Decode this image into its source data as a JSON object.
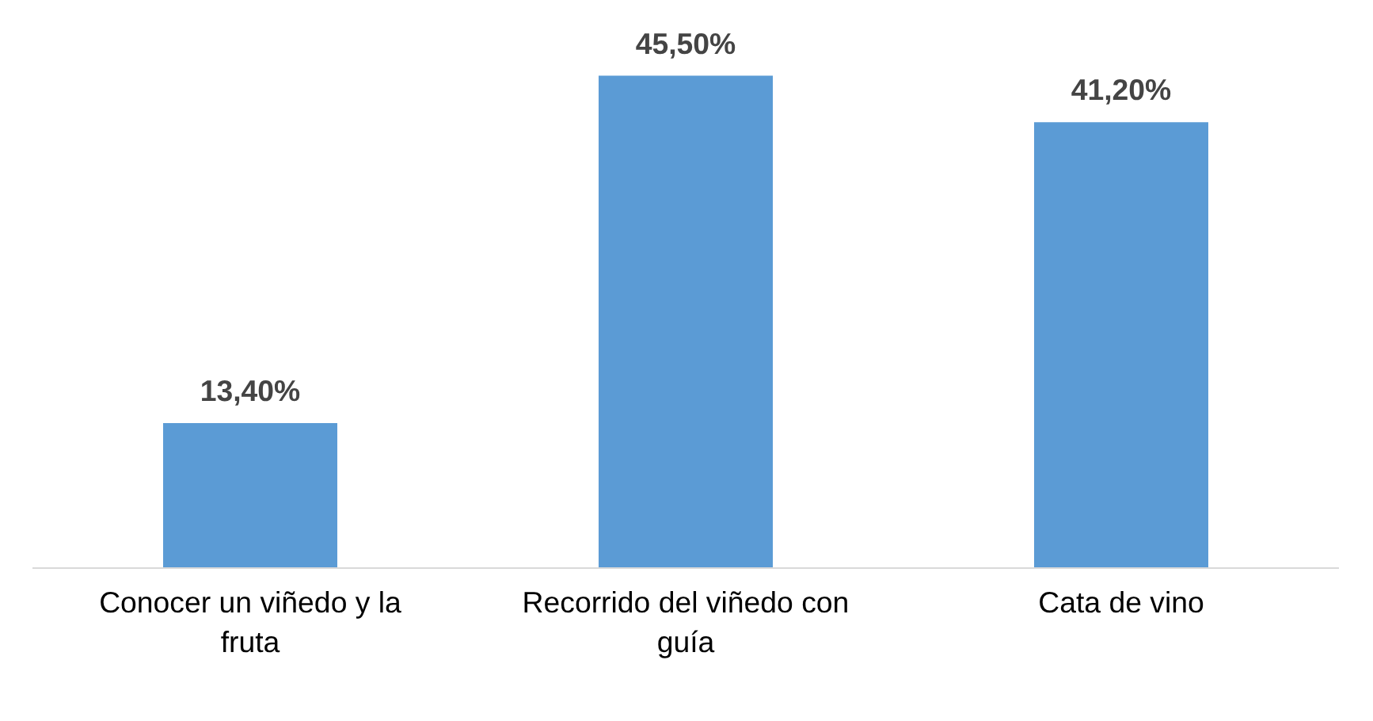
{
  "chart_data": {
    "type": "bar",
    "categories": [
      "Conocer un viñedo y la fruta",
      "Recorrido del viñedo con guía",
      "Cata de vino"
    ],
    "values": [
      13.4,
      45.5,
      41.2
    ],
    "color": "#5b9bd5",
    "value_labels": [
      "13,40%",
      "45,50%",
      "41,20%"
    ]
  }
}
